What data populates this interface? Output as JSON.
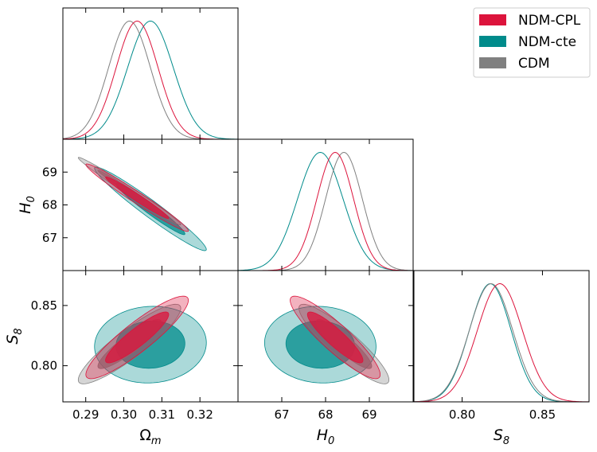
{
  "chart_data": {
    "type": "corner",
    "parameters": [
      {
        "symbol": "Ω",
        "sub": "m",
        "range": [
          0.284,
          0.33
        ],
        "ticks": [
          0.29,
          0.3,
          0.31,
          0.32
        ],
        "tick_labels": [
          "0.29",
          "0.30",
          "0.31",
          "0.32"
        ]
      },
      {
        "symbol": "H",
        "sub": "0",
        "range": [
          66.0,
          70.0
        ],
        "ticks": [
          67,
          68,
          69
        ],
        "tick_labels": [
          "67",
          "68",
          "69"
        ]
      },
      {
        "symbol": "S",
        "sub": "8",
        "range": [
          0.77,
          0.879
        ],
        "ticks": [
          0.8,
          0.85
        ],
        "tick_labels": [
          "0.80",
          "0.85"
        ]
      }
    ],
    "legend": {
      "placement": "top-right",
      "entries": [
        {
          "label": "NDM-CPL",
          "color": "#dc143c"
        },
        {
          "label": "NDM-cte",
          "color": "#008b8b"
        },
        {
          "label": "CDM",
          "color": "#808080"
        }
      ]
    },
    "series": [
      {
        "name": "NDM-CPL",
        "color": "#dc143c",
        "order": 3,
        "mean": [
          0.3035,
          68.22,
          0.8235
        ],
        "sigma": [
          0.0055,
          0.42,
          0.014
        ],
        "corr": [
          [
            1,
            -0.98,
            0.9
          ],
          [
            -0.98,
            1,
            -0.9
          ],
          [
            0.9,
            -0.9,
            1
          ]
        ]
      },
      {
        "name": "NDM-cte",
        "color": "#008b8b",
        "order": 1,
        "mean": [
          0.307,
          67.88,
          0.8175
        ],
        "sigma": [
          0.006,
          0.52,
          0.013
        ],
        "corr": [
          [
            1,
            -0.97,
            0.05
          ],
          [
            -0.97,
            1,
            -0.05
          ],
          [
            0.05,
            -0.05,
            1
          ]
        ]
      },
      {
        "name": "CDM",
        "color": "#808080",
        "order": 2,
        "mean": [
          0.3015,
          68.42,
          0.818
        ],
        "sigma": [
          0.0055,
          0.42,
          0.0135
        ],
        "corr": [
          [
            1,
            -0.99,
            0.9
          ],
          [
            -0.99,
            1,
            -0.9
          ],
          [
            0.9,
            -0.9,
            1
          ]
        ]
      }
    ],
    "contour_levels": [
      0.68,
      0.95
    ]
  }
}
